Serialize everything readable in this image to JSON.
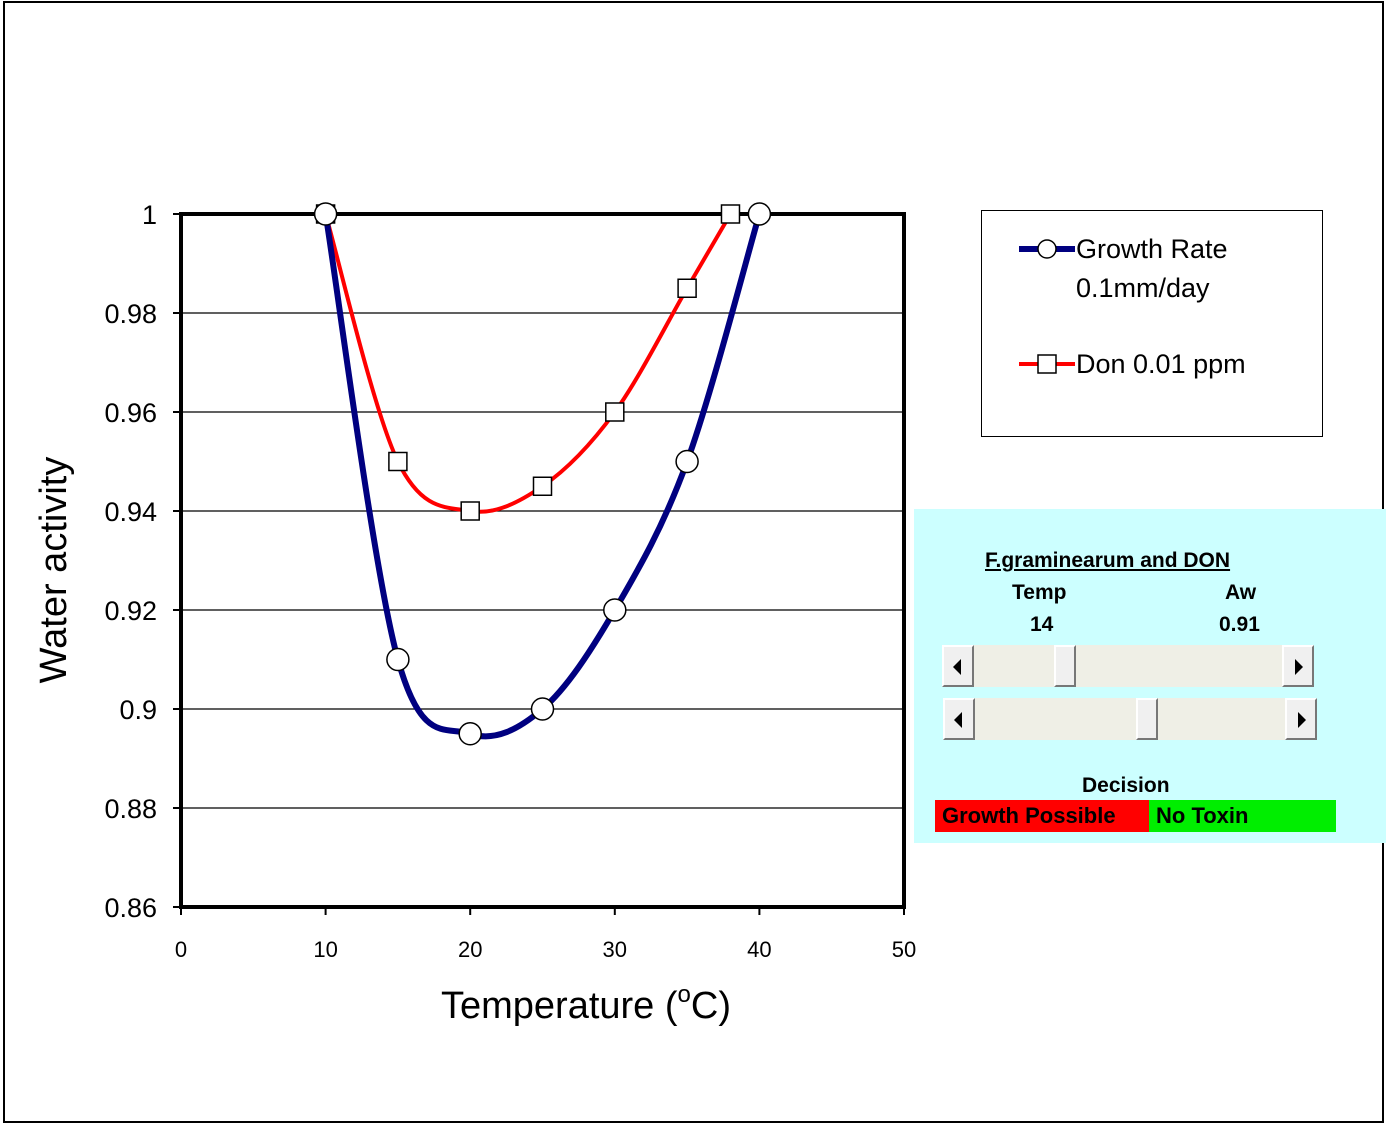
{
  "chart_data": {
    "type": "line",
    "title": "",
    "xlabel": "Temperature (°C)",
    "xlabel_main": "Temperature (",
    "xlabel_sup": "o",
    "xlabel_end": "C)",
    "ylabel": "Water activity",
    "xlim": [
      0,
      50
    ],
    "ylim": [
      0.86,
      1.0
    ],
    "x_ticks": [
      "0",
      "10",
      "20",
      "30",
      "40",
      "50"
    ],
    "y_ticks": [
      "0.86",
      "0.88",
      "0.9",
      "0.92",
      "0.94",
      "0.96",
      "0.98",
      "1"
    ],
    "grid": "horizontal",
    "legend_position": "right",
    "series": [
      {
        "name": "Growth Rate 0.1mm/day",
        "name_line1": "Growth Rate",
        "name_line2": "0.1mm/day",
        "color": "#000080",
        "marker": "circle",
        "x": [
          10,
          15,
          20,
          25,
          30,
          35,
          40
        ],
        "y": [
          1.0,
          0.91,
          0.895,
          0.9,
          0.92,
          0.95,
          1.0
        ]
      },
      {
        "name": "Don 0.01 ppm",
        "color": "#ff0000",
        "marker": "square",
        "x": [
          10,
          15,
          20,
          25,
          30,
          35,
          38
        ],
        "y": [
          1.0,
          0.95,
          0.94,
          0.945,
          0.96,
          0.985,
          1.0
        ]
      }
    ]
  },
  "panel": {
    "title": "F.graminearum and DON",
    "temp_label": "Temp",
    "aw_label": "Aw",
    "temp_value": "14",
    "aw_value": "0.91",
    "temp_slider_fraction": 0.28,
    "aw_slider_fraction": 0.56,
    "decision_label": "Decision",
    "decision_growth": "Growth Possible",
    "decision_toxin": "No Toxin",
    "growth_color": "#ff0000",
    "toxin_color": "#00ee00",
    "background": "#ccffff"
  }
}
